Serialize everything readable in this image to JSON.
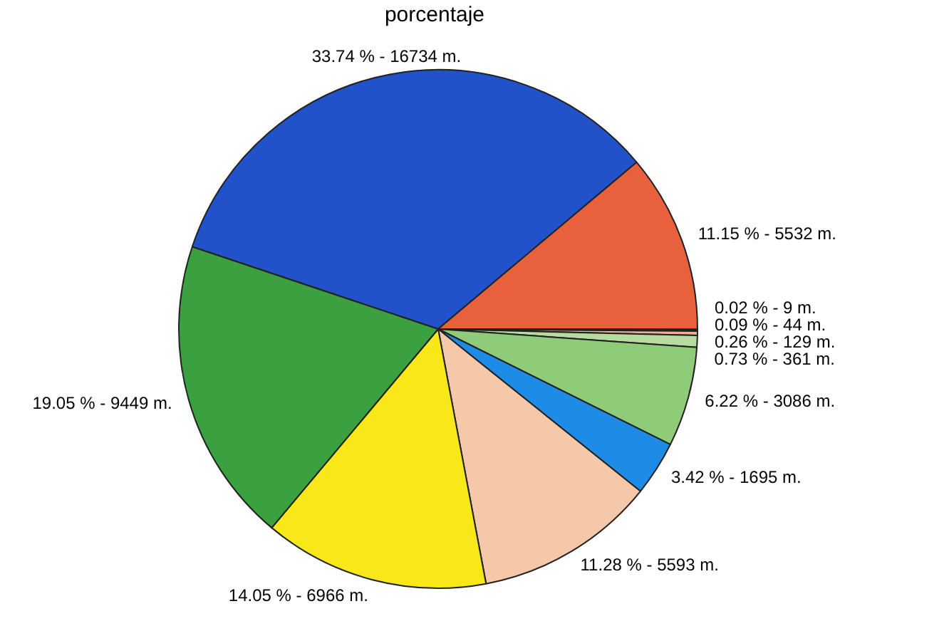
{
  "chart_data": {
    "type": "pie",
    "subtitle": "porcentaje",
    "categories": [
      null,
      null,
      null,
      null,
      null,
      null,
      null,
      null,
      null,
      null,
      null
    ],
    "values": [
      33.74,
      11.15,
      0.02,
      0.09,
      0.26,
      0.73,
      6.22,
      3.42,
      11.28,
      14.05,
      19.05
    ],
    "colors": [
      "#2152c9",
      "#e8603c",
      "#7a1020",
      "#a0306a",
      "#f0b090",
      "#b8dca0",
      "#8fcc7a",
      "#1e8ce6",
      "#f4c8a8",
      "#f8e81a",
      "#3aa040"
    ],
    "value_labels": [
      "33.74 % - 16734 m.",
      "11.15 % - 5532 m.",
      "0.02 % - 9 m.",
      "0.09 % - 44 m.",
      "0.26 % - 129 m.",
      "0.73 % - 361 m.",
      "6.22 % - 3086 m.",
      "3.42 % - 1695 m.",
      "11.28 % - 5593 m.",
      "14.05 % - 6966 m.",
      "19.05 % - 9449 m."
    ],
    "legend": false
  }
}
